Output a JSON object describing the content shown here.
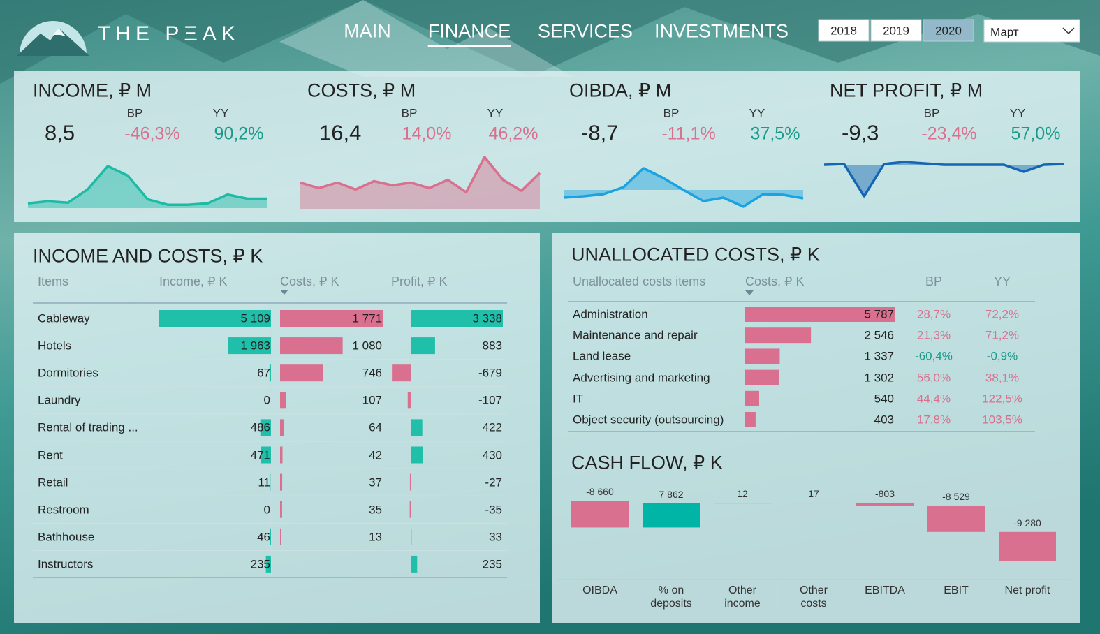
{
  "header": {
    "logo": "THE PΞAK",
    "nav": [
      "MAIN",
      "FINANCE",
      "SERVICES",
      "INVESTMENTS"
    ],
    "nav_active": 1,
    "years": [
      "2018",
      "2019",
      "2020"
    ],
    "year_selected": 2,
    "month": "Март"
  },
  "kpis": [
    {
      "title": "INCOME, ₽ M",
      "value": 8.5,
      "value_label": "8,5",
      "columns": [
        "BP",
        "YY"
      ],
      "changes": [
        -46.3,
        90.2
      ],
      "change_labels": [
        "-46,3%",
        "90,2%"
      ],
      "change_colors": [
        "#d9708f",
        "#1a9a8a"
      ],
      "trend": [
        7,
        10,
        8,
        28,
        62,
        48,
        13,
        5,
        5,
        7,
        20,
        14,
        14
      ],
      "color": "#1dbaa5",
      "baseline": "bottom"
    },
    {
      "title": "COSTS, ₽ M",
      "value": 16.4,
      "value_label": "16,4",
      "columns": [
        "BP",
        "YY"
      ],
      "changes": [
        14.0,
        46.2
      ],
      "change_labels": [
        "14,0%",
        "46,2%"
      ],
      "change_colors": [
        "#d9708f",
        "#d9708f"
      ],
      "trend": [
        38,
        30,
        38,
        28,
        40,
        34,
        38,
        30,
        42,
        24,
        75,
        42,
        26,
        52
      ],
      "color": "#d9708f",
      "baseline": "bottom"
    },
    {
      "title": "OIBDA, ₽ M",
      "value": -8.7,
      "value_label": "-8,7",
      "columns": [
        "BP",
        "YY"
      ],
      "changes": [
        -11.1,
        37.5
      ],
      "change_labels": [
        "-11,1%",
        "37,5%"
      ],
      "change_colors": [
        "#d9708f",
        "#1a9a8a"
      ],
      "trend": [
        -11,
        -9,
        -6,
        4,
        31,
        17,
        0,
        -16,
        -11,
        -24,
        -6,
        -7,
        -12
      ],
      "color": "#1aa3e0",
      "baseline": "zero"
    },
    {
      "title": "NET PROFIT, ₽ M",
      "value": -9.3,
      "value_label": "-9,3",
      "columns": [
        "BP",
        "YY"
      ],
      "changes": [
        -23.4,
        57.0
      ],
      "change_labels": [
        "-23,4%",
        "57,0%"
      ],
      "change_colors": [
        "#d9708f",
        "#1a9a8a"
      ],
      "trend": [
        0,
        1,
        -45,
        1,
        4,
        2,
        0,
        0,
        0,
        0,
        -10,
        0,
        1
      ],
      "color": "#1466b4",
      "baseline": "zero"
    }
  ],
  "income_costs": {
    "title": "INCOME AND COSTS, ₽ K",
    "item_header": "Items",
    "categories": [
      "Cableway",
      "Hotels",
      "Dormitories",
      "Laundry",
      "Rental of trading ...",
      "Rent",
      "Retail",
      "Restroom",
      "Bathhouse",
      "Instructors"
    ],
    "series": [
      {
        "name": "Income, ₽ K",
        "color": "#1fbfaa",
        "values": [
          5109,
          1963,
          67,
          0,
          486,
          471,
          11,
          0,
          46,
          235
        ],
        "value_labels": [
          "5 109",
          "1 963",
          "67",
          "0",
          "486",
          "471",
          "11",
          "0",
          "46",
          "235"
        ]
      },
      {
        "name": "Costs, ₽ K",
        "color": "#d9708f",
        "values": [
          1771,
          1080,
          746,
          107,
          64,
          42,
          37,
          35,
          13,
          null
        ],
        "value_labels": [
          "1 771",
          "1 080",
          "746",
          "107",
          "64",
          "42",
          "37",
          "35",
          "13",
          null
        ]
      },
      {
        "name": "Profit, ₽ K",
        "color": "#1fbfaa",
        "negative_color": "#d9708f",
        "values": [
          3338,
          883,
          -679,
          -107,
          422,
          430,
          -27,
          -35,
          33,
          235
        ],
        "value_labels": [
          "3 338",
          "883",
          "-679",
          "-107",
          "422",
          "430",
          "-27",
          "-35",
          "33",
          "235"
        ]
      }
    ]
  },
  "unallocated": {
    "title": "UNALLOCATED COSTS, ₽ K",
    "item_header": "Unallocated costs items",
    "categories": [
      "Administration",
      "Maintenance and repair",
      "Land lease",
      "Advertising and marketing",
      "IT",
      "Object security (outsourcing)"
    ],
    "series": [
      {
        "name": "Costs, ₽ K",
        "color": "#d9708f",
        "values": [
          5787,
          2546,
          1337,
          1302,
          540,
          403
        ],
        "value_labels": [
          "5 787",
          "2 546",
          "1 337",
          "1 302",
          "540",
          "403"
        ]
      },
      {
        "name": "BP",
        "values": [
          28.7,
          21.3,
          -60.4,
          56.0,
          44.4,
          17.8
        ],
        "value_labels": [
          "28,7%",
          "21,3%",
          "-60,4%",
          "56,0%",
          "44,4%",
          "17,8%"
        ]
      },
      {
        "name": "YY",
        "values": [
          72.2,
          71.2,
          -0.9,
          38.1,
          122.5,
          103.5
        ],
        "value_labels": [
          "72,2%",
          "71,2%",
          "-0,9%",
          "38,1%",
          "122,5%",
          "103,5%"
        ]
      }
    ],
    "positive_color": "#d9708f",
    "negative_color": "#1a9a8a"
  },
  "cash_flow": {
    "type": "waterfall",
    "title": "CASH FLOW, ₽ K",
    "categories": [
      "OIBDA",
      "% on deposits",
      "Other income",
      "Other costs",
      "EBITDA",
      "EBIT",
      "Net profit"
    ],
    "values": [
      -8660,
      7862,
      12,
      17,
      -803,
      -8529,
      -9280
    ],
    "value_labels": [
      "-8 660",
      "7 862",
      "12",
      "17",
      "-803",
      "-8 529",
      "-9 280"
    ],
    "positive_color": "#00b5a5",
    "negative_color": "#d9708f"
  }
}
